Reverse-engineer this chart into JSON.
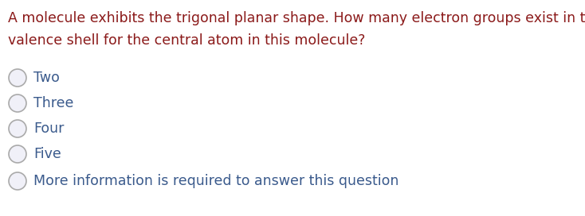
{
  "question_line1": "A molecule exhibits the trigonal planar shape. How many electron groups exist in the",
  "question_line2": "valence shell for the central atom in this molecule?",
  "question_color": "#8B1A1A",
  "options": [
    "Two",
    "Three",
    "Four",
    "Five",
    "More information is required to answer this question"
  ],
  "option_color": "#3a5a8c",
  "bg_color": "#ffffff",
  "question_fontsize": 12.5,
  "option_fontsize": 12.5,
  "circle_edge_color": "#aaaaaa",
  "circle_fill_color": "#f0f0f8"
}
